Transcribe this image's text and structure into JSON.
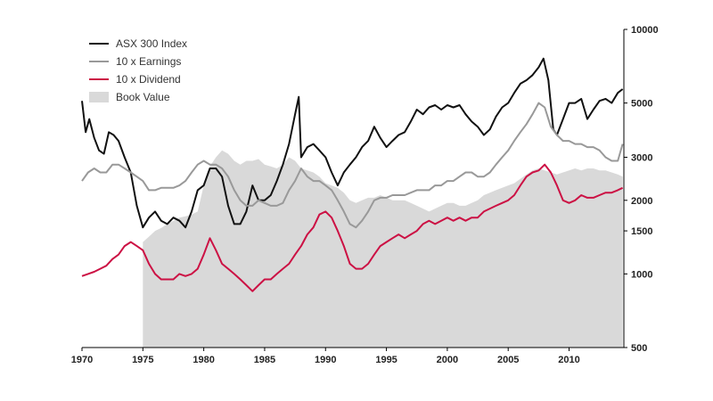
{
  "chart_data": {
    "type": "line",
    "title": "",
    "xlabel": "",
    "ylabel": "",
    "y_scale": "log",
    "xlim": [
      1970,
      2014.5
    ],
    "ylim": [
      500,
      10000
    ],
    "x_ticks": [
      1970,
      1975,
      1980,
      1985,
      1990,
      1995,
      2000,
      2005,
      2010
    ],
    "x_tick_labels": [
      "1970",
      "1975",
      "1980",
      "1985",
      "1990",
      "1995",
      "2000",
      "2005",
      "2010"
    ],
    "y_ticks": [
      500,
      1000,
      1500,
      2000,
      3000,
      5000,
      10000
    ],
    "y_tick_labels": [
      "500",
      "1000",
      "1500",
      "2000",
      "3000",
      "5000",
      "10000"
    ],
    "y_axis_side": "right",
    "grid": false,
    "legend": "top-left",
    "series": [
      {
        "name": "Book Value",
        "kind": "area",
        "color": "#d9d9d9",
        "x": [
          1975.0,
          1975.5,
          1976.0,
          1976.5,
          1977.0,
          1977.5,
          1978.0,
          1978.5,
          1979.0,
          1979.5,
          1980.0,
          1980.3,
          1980.6,
          1981.0,
          1981.5,
          1982.0,
          1982.5,
          1983.0,
          1983.5,
          1984.0,
          1984.5,
          1985.0,
          1985.5,
          1986.0,
          1986.5,
          1987.0,
          1987.5,
          1988.0,
          1988.5,
          1989.0,
          1989.5,
          1990.0,
          1990.5,
          1991.0,
          1991.5,
          1992.0,
          1992.5,
          1993.0,
          1993.5,
          1994.0,
          1994.5,
          1995.0,
          1995.5,
          1996.0,
          1996.5,
          1997.0,
          1997.5,
          1998.0,
          1998.5,
          1999.0,
          1999.5,
          2000.0,
          2000.5,
          2001.0,
          2001.5,
          2002.0,
          2002.5,
          2003.0,
          2003.5,
          2004.0,
          2004.5,
          2005.0,
          2005.5,
          2006.0,
          2006.5,
          2007.0,
          2007.5,
          2008.0,
          2008.5,
          2009.0,
          2009.5,
          2010.0,
          2010.5,
          2011.0,
          2011.5,
          2012.0,
          2012.5,
          2013.0,
          2013.5,
          2014.0,
          2014.4
        ],
        "values": [
          1350,
          1420,
          1500,
          1540,
          1600,
          1650,
          1700,
          1720,
          1750,
          1800,
          2300,
          2600,
          2800,
          3000,
          3200,
          3100,
          2900,
          2800,
          2900,
          2900,
          2950,
          2800,
          2750,
          2700,
          2800,
          3000,
          2900,
          2700,
          2650,
          2600,
          2500,
          2350,
          2300,
          2250,
          2150,
          2000,
          1950,
          2000,
          2050,
          2050,
          2100,
          2050,
          2000,
          2000,
          2000,
          1950,
          1900,
          1850,
          1800,
          1850,
          1900,
          1950,
          1950,
          1900,
          1900,
          1950,
          2000,
          2100,
          2150,
          2200,
          2250,
          2300,
          2350,
          2450,
          2550,
          2650,
          2700,
          2650,
          2600,
          2550,
          2600,
          2650,
          2700,
          2650,
          2700,
          2700,
          2650,
          2650,
          2600,
          2550,
          2500
        ]
      },
      {
        "name": "ASX 300 Index",
        "kind": "line",
        "color": "#111111",
        "x": [
          1970.0,
          1970.3,
          1970.6,
          1971.0,
          1971.4,
          1971.8,
          1972.2,
          1972.6,
          1973.0,
          1973.5,
          1974.0,
          1974.5,
          1975.0,
          1975.5,
          1976.0,
          1976.5,
          1977.0,
          1977.5,
          1978.0,
          1978.5,
          1979.0,
          1979.5,
          1980.0,
          1980.5,
          1981.0,
          1981.5,
          1982.0,
          1982.5,
          1983.0,
          1983.5,
          1984.0,
          1984.5,
          1985.0,
          1985.5,
          1986.0,
          1986.5,
          1987.0,
          1987.5,
          1987.8,
          1988.0,
          1988.5,
          1989.0,
          1989.5,
          1990.0,
          1990.5,
          1991.0,
          1991.5,
          1992.0,
          1992.5,
          1993.0,
          1993.5,
          1994.0,
          1994.5,
          1995.0,
          1995.5,
          1996.0,
          1996.5,
          1997.0,
          1997.5,
          1998.0,
          1998.5,
          1999.0,
          1999.5,
          2000.0,
          2000.5,
          2001.0,
          2001.5,
          2002.0,
          2002.5,
          2003.0,
          2003.5,
          2004.0,
          2004.5,
          2005.0,
          2005.5,
          2006.0,
          2006.5,
          2007.0,
          2007.5,
          2007.9,
          2008.3,
          2008.7,
          2009.0,
          2009.5,
          2010.0,
          2010.5,
          2011.0,
          2011.5,
          2012.0,
          2012.5,
          2013.0,
          2013.5,
          2014.0,
          2014.4
        ],
        "values": [
          5100,
          3800,
          4300,
          3600,
          3200,
          3100,
          3800,
          3700,
          3500,
          3000,
          2600,
          1900,
          1550,
          1700,
          1800,
          1650,
          1600,
          1700,
          1650,
          1550,
          1800,
          2200,
          2300,
          2700,
          2700,
          2500,
          1900,
          1600,
          1600,
          1800,
          2300,
          2000,
          2000,
          2100,
          2400,
          2800,
          3400,
          4500,
          5300,
          3000,
          3300,
          3400,
          3200,
          3000,
          2600,
          2300,
          2600,
          2800,
          3000,
          3300,
          3500,
          4000,
          3600,
          3300,
          3500,
          3700,
          3800,
          4200,
          4700,
          4500,
          4800,
          4900,
          4700,
          4900,
          4800,
          4900,
          4500,
          4200,
          4000,
          3700,
          3900,
          4400,
          4800,
          5000,
          5500,
          6000,
          6200,
          6500,
          7000,
          7600,
          6200,
          3900,
          3700,
          4300,
          5000,
          5000,
          5200,
          4300,
          4700,
          5100,
          5200,
          5000,
          5500,
          5700
        ]
      },
      {
        "name": "10 x Earnings",
        "kind": "line",
        "color": "#999999",
        "x": [
          1970.0,
          1970.5,
          1971.0,
          1971.5,
          1972.0,
          1972.5,
          1973.0,
          1973.5,
          1974.0,
          1974.5,
          1975.0,
          1975.5,
          1976.0,
          1976.5,
          1977.0,
          1977.5,
          1978.0,
          1978.5,
          1979.0,
          1979.5,
          1980.0,
          1980.5,
          1981.0,
          1981.5,
          1982.0,
          1982.5,
          1983.0,
          1983.5,
          1984.0,
          1984.5,
          1985.0,
          1985.5,
          1986.0,
          1986.5,
          1987.0,
          1987.5,
          1988.0,
          1988.5,
          1989.0,
          1989.5,
          1990.0,
          1990.5,
          1991.0,
          1991.5,
          1992.0,
          1992.5,
          1993.0,
          1993.5,
          1994.0,
          1994.5,
          1995.0,
          1995.5,
          1996.0,
          1996.5,
          1997.0,
          1997.5,
          1998.0,
          1998.5,
          1999.0,
          1999.5,
          2000.0,
          2000.5,
          2001.0,
          2001.5,
          2002.0,
          2002.5,
          2003.0,
          2003.5,
          2004.0,
          2004.5,
          2005.0,
          2005.5,
          2006.0,
          2006.5,
          2007.0,
          2007.5,
          2008.0,
          2008.5,
          2009.0,
          2009.5,
          2010.0,
          2010.5,
          2011.0,
          2011.5,
          2012.0,
          2012.5,
          2013.0,
          2013.5,
          2014.0,
          2014.4
        ],
        "values": [
          2400,
          2600,
          2700,
          2600,
          2600,
          2800,
          2800,
          2700,
          2600,
          2500,
          2400,
          2200,
          2200,
          2250,
          2250,
          2250,
          2300,
          2400,
          2600,
          2800,
          2900,
          2800,
          2800,
          2700,
          2500,
          2200,
          2000,
          1900,
          1900,
          2000,
          1950,
          1900,
          1900,
          1950,
          2200,
          2400,
          2700,
          2500,
          2400,
          2400,
          2300,
          2200,
          2000,
          1800,
          1600,
          1550,
          1650,
          1800,
          2000,
          2050,
          2050,
          2100,
          2100,
          2100,
          2150,
          2200,
          2200,
          2200,
          2300,
          2300,
          2400,
          2400,
          2500,
          2600,
          2600,
          2500,
          2500,
          2600,
          2800,
          3000,
          3200,
          3500,
          3800,
          4100,
          4500,
          5000,
          4800,
          4000,
          3700,
          3500,
          3500,
          3400,
          3400,
          3300,
          3300,
          3200,
          3000,
          2900,
          2900,
          3400
        ]
      },
      {
        "name": "10 x Dividend",
        "kind": "line",
        "color": "#cc1144",
        "x": [
          1970.0,
          1970.5,
          1971.0,
          1971.5,
          1972.0,
          1972.5,
          1973.0,
          1973.5,
          1974.0,
          1974.5,
          1975.0,
          1975.5,
          1976.0,
          1976.5,
          1977.0,
          1977.5,
          1978.0,
          1978.5,
          1979.0,
          1979.5,
          1980.0,
          1980.5,
          1981.0,
          1981.5,
          1982.0,
          1982.5,
          1983.0,
          1983.5,
          1984.0,
          1984.5,
          1985.0,
          1985.5,
          1986.0,
          1986.5,
          1987.0,
          1987.5,
          1988.0,
          1988.5,
          1989.0,
          1989.5,
          1990.0,
          1990.5,
          1991.0,
          1991.5,
          1992.0,
          1992.5,
          1993.0,
          1993.5,
          1994.0,
          1994.5,
          1995.0,
          1995.5,
          1996.0,
          1996.5,
          1997.0,
          1997.5,
          1998.0,
          1998.5,
          1999.0,
          1999.5,
          2000.0,
          2000.5,
          2001.0,
          2001.5,
          2002.0,
          2002.5,
          2003.0,
          2003.5,
          2004.0,
          2004.5,
          2005.0,
          2005.5,
          2006.0,
          2006.5,
          2007.0,
          2007.5,
          2008.0,
          2008.5,
          2009.0,
          2009.5,
          2010.0,
          2010.5,
          2011.0,
          2011.5,
          2012.0,
          2012.5,
          2013.0,
          2013.5,
          2014.0,
          2014.4
        ],
        "values": [
          980,
          1000,
          1020,
          1050,
          1080,
          1150,
          1200,
          1300,
          1350,
          1300,
          1250,
          1100,
          1000,
          950,
          950,
          950,
          1000,
          980,
          1000,
          1050,
          1200,
          1400,
          1250,
          1100,
          1050,
          1000,
          950,
          900,
          850,
          900,
          950,
          950,
          1000,
          1050,
          1100,
          1200,
          1300,
          1450,
          1550,
          1750,
          1800,
          1700,
          1500,
          1300,
          1100,
          1050,
          1050,
          1100,
          1200,
          1300,
          1350,
          1400,
          1450,
          1400,
          1450,
          1500,
          1600,
          1650,
          1600,
          1650,
          1700,
          1650,
          1700,
          1650,
          1700,
          1700,
          1800,
          1850,
          1900,
          1950,
          2000,
          2100,
          2300,
          2500,
          2600,
          2650,
          2800,
          2600,
          2300,
          2000,
          1950,
          2000,
          2100,
          2050,
          2050,
          2100,
          2150,
          2150,
          2200,
          2250
        ]
      }
    ]
  }
}
